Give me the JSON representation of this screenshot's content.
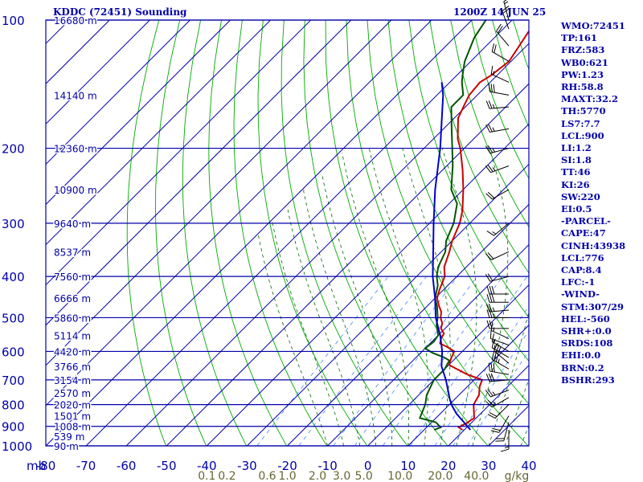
{
  "header": {
    "station": "KDDC (72451) Sounding",
    "time": "1200Z 14 JUN 25"
  },
  "indices": [
    "WMO:72451",
    "TP:161",
    "FRZ:583",
    "WB0:621",
    "PW:1.23",
    "RH:58.8",
    "MAXT:32.2",
    "TH:5770",
    "LS7:7.7",
    "LCL:900",
    "LI:1.2",
    "SI:1.8",
    "TT:46",
    "KI:26",
    "SW:220",
    "EI:0.5",
    "-PARCEL-",
    "CAPE:47",
    "CINH:43938",
    "LCL:776",
    "CAP:8.4",
    "LFC:-1",
    "-WIND-",
    "STM:307/29",
    "HEL:-560",
    "SHR+:0.0",
    "SRDS:108",
    "EHI:0.0",
    "BRN:0.2",
    "BSHR:293"
  ],
  "colors": {
    "grid": "#0000aa",
    "dry_adiabat": "#00aa00",
    "moist_adiabat": "#006600",
    "mixing_ratio": "#4488ff",
    "temperature": "#cc0000",
    "dewpoint": "#005500",
    "parcel": "#0000cc",
    "wind": "#000000",
    "mixing_label": "#666633"
  },
  "chart_data": {
    "type": "line",
    "title": "KDDC (72451) Sounding",
    "xlabel": "mb",
    "x_unit": "°C",
    "xlim": [
      -80,
      40
    ],
    "ylim": [
      1000,
      100
    ],
    "y_scale": "log",
    "x_ticks": [
      -80,
      -70,
      -60,
      -50,
      -40,
      -30,
      -20,
      -10,
      0,
      10,
      20,
      30,
      40
    ],
    "x_tick_labels": [
      "-80",
      "-70",
      "-60",
      "-50",
      "-40",
      "-30",
      "-20",
      "-10",
      "0",
      "10",
      "20",
      "30",
      "40"
    ],
    "pressure_levels": [
      100,
      200,
      300,
      400,
      500,
      600,
      700,
      800,
      900,
      1000
    ],
    "height_labels": [
      {
        "p": 100,
        "label": "16680 m"
      },
      {
        "p": 150,
        "label": "14140 m"
      },
      {
        "p": 200,
        "label": "12360 m"
      },
      {
        "p": 250,
        "label": "10900 m"
      },
      {
        "p": 300,
        "label": "9640 m"
      },
      {
        "p": 350,
        "label": "8537 m"
      },
      {
        "p": 400,
        "label": "7560 m"
      },
      {
        "p": 450,
        "label": "6666 m"
      },
      {
        "p": 500,
        "label": "5860 m"
      },
      {
        "p": 550,
        "label": "5114 m"
      },
      {
        "p": 600,
        "label": "4420 m"
      },
      {
        "p": 650,
        "label": "3766 m"
      },
      {
        "p": 700,
        "label": "3154 m"
      },
      {
        "p": 750,
        "label": "2570 m"
      },
      {
        "p": 800,
        "label": "2020 m"
      },
      {
        "p": 850,
        "label": "1501 m"
      },
      {
        "p": 900,
        "label": "1008 m"
      },
      {
        "p": 950,
        "label": "539 m"
      },
      {
        "p": 1000,
        "label": "90 m"
      }
    ],
    "mixing_ratio_labels": [
      {
        "w": 0.1,
        "x": -40,
        "label": "0.1"
      },
      {
        "w": 0.2,
        "x": -35,
        "label": "0.2"
      },
      {
        "w": 0.6,
        "x": -25,
        "label": "0.6"
      },
      {
        "w": 1.0,
        "x": -20,
        "label": "1.0"
      },
      {
        "w": 2.0,
        "x": -12.5,
        "label": "2.0"
      },
      {
        "w": 3.0,
        "x": -6.5,
        "label": "3.0"
      },
      {
        "w": 5.0,
        "x": -1,
        "label": "5.0"
      },
      {
        "w": 10.0,
        "x": 8,
        "label": "10.0"
      },
      {
        "w": 20.0,
        "x": 18,
        "label": "20.0"
      },
      {
        "w": 40.0,
        "x": 27,
        "label": "40.0"
      },
      {
        "w": 0,
        "x": 37,
        "label": "g/kg"
      }
    ],
    "series": [
      {
        "name": "",
        "kind": "temperature",
        "points": [
          [
            917,
            19.5
          ],
          [
            905,
            18
          ],
          [
            880,
            19
          ],
          [
            860,
            19.5
          ],
          [
            800,
            16
          ],
          [
            760,
            15
          ],
          [
            725,
            13
          ],
          [
            700,
            12
          ],
          [
            680,
            7
          ],
          [
            660,
            3
          ],
          [
            645,
            0
          ],
          [
            620,
            -1.2
          ],
          [
            600,
            -2
          ],
          [
            585,
            -5
          ],
          [
            575,
            -7.5
          ],
          [
            560,
            -8.5
          ],
          [
            545,
            -9
          ],
          [
            530,
            -11
          ],
          [
            515,
            -12
          ],
          [
            500,
            -13.8
          ],
          [
            485,
            -15
          ],
          [
            470,
            -17
          ],
          [
            450,
            -19.5
          ],
          [
            430,
            -21
          ],
          [
            400,
            -23
          ],
          [
            380,
            -25.5
          ],
          [
            350,
            -28
          ],
          [
            330,
            -30
          ],
          [
            300,
            -32.5
          ],
          [
            280,
            -35
          ],
          [
            250,
            -40
          ],
          [
            225,
            -45
          ],
          [
            200,
            -51
          ],
          [
            190,
            -54
          ],
          [
            170,
            -59
          ],
          [
            160,
            -60.5
          ],
          [
            150,
            -62
          ],
          [
            140,
            -62.5
          ],
          [
            135,
            -61.5
          ],
          [
            125,
            -60.5
          ],
          [
            110,
            -62.5
          ],
          [
            100,
            -64
          ]
        ]
      },
      {
        "name": "",
        "kind": "dewpoint",
        "points": [
          [
            917,
            12.5
          ],
          [
            905,
            13.5
          ],
          [
            880,
            11
          ],
          [
            860,
            6
          ],
          [
            800,
            4
          ],
          [
            760,
            2
          ],
          [
            700,
            0
          ],
          [
            660,
            0
          ],
          [
            630,
            -1
          ],
          [
            620,
            -3
          ],
          [
            605,
            -7
          ],
          [
            590,
            -10
          ],
          [
            570,
            -9.5
          ],
          [
            550,
            -10
          ],
          [
            520,
            -13
          ],
          [
            500,
            -14.5
          ],
          [
            470,
            -17.5
          ],
          [
            450,
            -20
          ],
          [
            420,
            -22.5
          ],
          [
            400,
            -25
          ],
          [
            380,
            -27
          ],
          [
            350,
            -29
          ],
          [
            330,
            -31.5
          ],
          [
            300,
            -34
          ],
          [
            270,
            -38
          ],
          [
            250,
            -43
          ],
          [
            220,
            -48.5
          ],
          [
            200,
            -53
          ],
          [
            180,
            -58
          ],
          [
            160,
            -63.5
          ],
          [
            150,
            -63.5
          ],
          [
            140,
            -67
          ],
          [
            135,
            -68.5
          ],
          [
            130,
            -70
          ],
          [
            125,
            -71.5
          ],
          [
            110,
            -75
          ],
          [
            100,
            -76.5
          ]
        ]
      },
      {
        "name": "",
        "kind": "parcel",
        "points": [
          [
            917,
            21.5
          ],
          [
            880,
            18
          ],
          [
            840,
            14
          ],
          [
            800,
            10.5
          ],
          [
            776,
            8.7
          ],
          [
            700,
            3
          ],
          [
            650,
            -1.5
          ],
          [
            600,
            -5
          ],
          [
            550,
            -9.5
          ],
          [
            500,
            -15
          ],
          [
            450,
            -20
          ],
          [
            400,
            -26
          ],
          [
            350,
            -32
          ],
          [
            300,
            -39
          ],
          [
            250,
            -47
          ],
          [
            200,
            -56
          ],
          [
            150,
            -68.5
          ],
          [
            140,
            -72
          ]
        ]
      }
    ],
    "wind_barbs": [
      {
        "p": 917,
        "dir": 180,
        "spd": 15
      },
      {
        "p": 880,
        "dir": 195,
        "spd": 20
      },
      {
        "p": 850,
        "dir": 210,
        "spd": 20
      },
      {
        "p": 800,
        "dir": 225,
        "spd": 20
      },
      {
        "p": 770,
        "dir": 240,
        "spd": 25
      },
      {
        "p": 740,
        "dir": 250,
        "spd": 25
      },
      {
        "p": 700,
        "dir": 265,
        "spd": 30
      },
      {
        "p": 680,
        "dir": 280,
        "spd": 30
      },
      {
        "p": 660,
        "dir": 300,
        "spd": 35
      },
      {
        "p": 640,
        "dir": 310,
        "spd": 30
      },
      {
        "p": 620,
        "dir": 300,
        "spd": 15
      },
      {
        "p": 600,
        "dir": 300,
        "spd": 15
      },
      {
        "p": 580,
        "dir": 290,
        "spd": 10
      },
      {
        "p": 560,
        "dir": 295,
        "spd": 15
      },
      {
        "p": 530,
        "dir": 270,
        "spd": 20
      },
      {
        "p": 500,
        "dir": 270,
        "spd": 25
      },
      {
        "p": 480,
        "dir": 265,
        "spd": 25
      },
      {
        "p": 460,
        "dir": 270,
        "spd": 30
      },
      {
        "p": 440,
        "dir": 270,
        "spd": 30
      },
      {
        "p": 400,
        "dir": 255,
        "spd": 20
      },
      {
        "p": 350,
        "dir": 245,
        "spd": 20
      },
      {
        "p": 300,
        "dir": 230,
        "spd": 15
      },
      {
        "p": 250,
        "dir": 240,
        "spd": 20
      },
      {
        "p": 220,
        "dir": 250,
        "spd": 25
      },
      {
        "p": 200,
        "dir": 255,
        "spd": 25
      },
      {
        "p": 180,
        "dir": 260,
        "spd": 25
      },
      {
        "p": 160,
        "dir": 265,
        "spd": 25
      },
      {
        "p": 150,
        "dir": 280,
        "spd": 30
      },
      {
        "p": 140,
        "dir": 295,
        "spd": 15
      },
      {
        "p": 125,
        "dir": 300,
        "spd": 20
      },
      {
        "p": 115,
        "dir": 320,
        "spd": 20
      },
      {
        "p": 105,
        "dir": 340,
        "spd": 20
      },
      {
        "p": 100,
        "dir": 345,
        "spd": 15
      }
    ]
  }
}
